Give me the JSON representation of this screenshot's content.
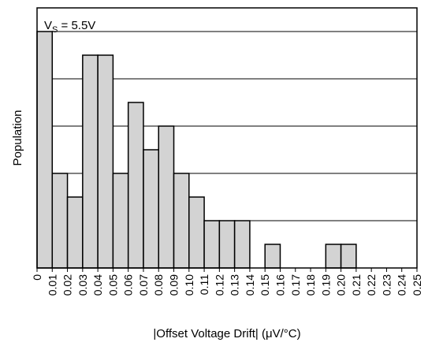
{
  "chart_data": {
    "type": "bar",
    "annotation": {
      "symbol": "V",
      "subscript": "S",
      "value_text": " = 5.5V"
    },
    "xlabel": "|Offset Voltage Drift| (μV/°C)",
    "ylabel": "Population",
    "tick_labels": [
      "0",
      "0.01",
      "0.02",
      "0.03",
      "0.04",
      "0.05",
      "0.06",
      "0.07",
      "0.08",
      "0.09",
      "0.10",
      "0.11",
      "0.12",
      "0.13",
      "0.14",
      "0.15",
      "0.16",
      "0.17",
      "0.18",
      "0.19",
      "0.20",
      "0.21",
      "0.22",
      "0.23",
      "0.24",
      "0.25"
    ],
    "bin_width": 0.01,
    "xlim": [
      0,
      0.25
    ],
    "values": [
      10,
      4,
      3,
      9,
      9,
      4,
      7,
      5,
      6,
      4,
      3,
      2,
      2,
      2,
      0,
      1,
      0,
      0,
      0,
      1,
      1,
      0,
      0,
      0,
      0
    ],
    "ylim": [
      0,
      11
    ],
    "y_tick_labels_shown": false,
    "grid": "horizontal",
    "colors": {
      "bar_fill": "#d3d3d3",
      "bar_stroke": "#000000",
      "frame": "#000000"
    }
  }
}
